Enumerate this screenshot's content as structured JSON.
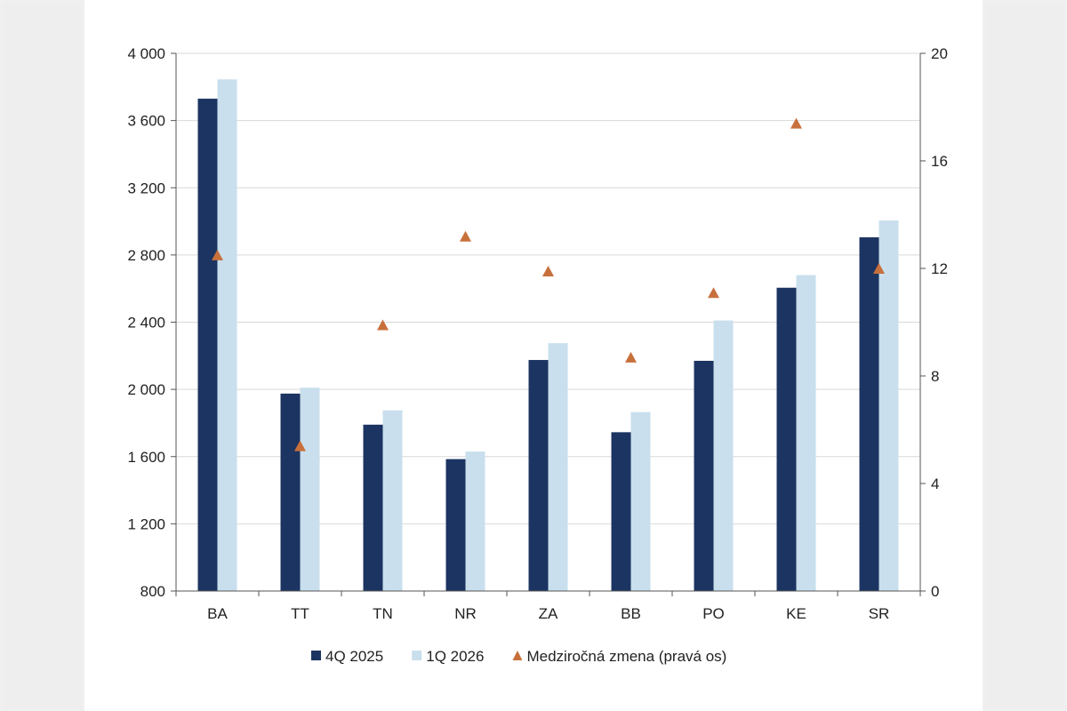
{
  "chart_data": {
    "type": "bar",
    "categories": [
      "BA",
      "TT",
      "TN",
      "NR",
      "ZA",
      "BB",
      "PO",
      "KE",
      "SR"
    ],
    "series": [
      {
        "name": "4Q 2025",
        "kind": "bar",
        "axis": "left",
        "color": "#1c3461",
        "values": [
          3730,
          1975,
          1790,
          1585,
          2175,
          1745,
          2170,
          2605,
          2905
        ]
      },
      {
        "name": "1Q 2026",
        "kind": "bar",
        "axis": "left",
        "color": "#c9dfed",
        "values": [
          3845,
          2010,
          1875,
          1630,
          2275,
          1865,
          2410,
          2680,
          3005
        ]
      },
      {
        "name": "Medziročná zmena (pravá os)",
        "kind": "marker",
        "marker": "triangle",
        "axis": "right",
        "color": "#c8703c",
        "values": [
          12.5,
          5.4,
          9.9,
          13.2,
          11.9,
          8.7,
          11.1,
          17.4,
          12.0
        ]
      }
    ],
    "y_left": {
      "min": 800,
      "max": 4000,
      "ticks": [
        "800",
        "1 200",
        "1 600",
        "2 000",
        "2 400",
        "2 800",
        "3 200",
        "3 600",
        "4 000"
      ]
    },
    "y_right": {
      "min": 0,
      "max": 20,
      "ticks": [
        "0",
        "4",
        "8",
        "12",
        "16",
        "20"
      ]
    },
    "grid": true,
    "legend_position": "bottom"
  }
}
